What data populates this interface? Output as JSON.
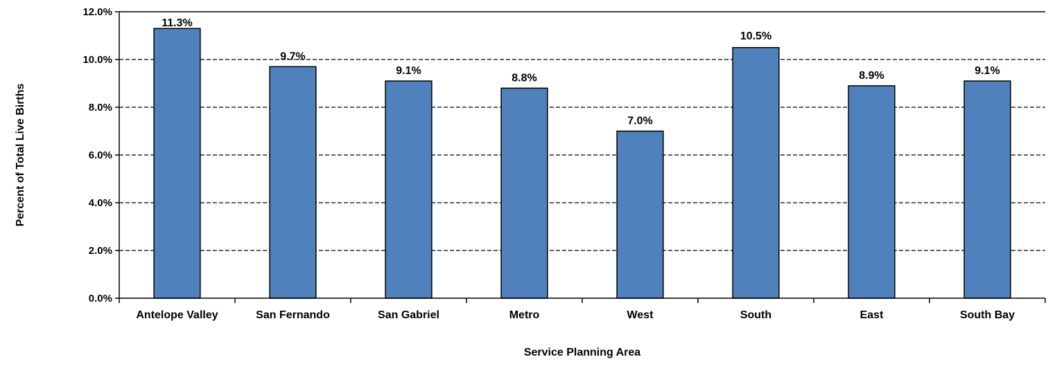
{
  "chart_data": {
    "type": "bar",
    "title": "",
    "xlabel": "Service Planning Area",
    "ylabel": "Percent of Total Live Births",
    "categories": [
      "Antelope Valley",
      "San Fernando",
      "San Gabriel",
      "Metro",
      "West",
      "South",
      "East",
      "South Bay"
    ],
    "values": [
      11.3,
      9.7,
      9.1,
      8.8,
      7.0,
      10.5,
      8.9,
      9.1
    ],
    "data_labels": [
      "11.3%",
      "9.7%",
      "9.1%",
      "8.8%",
      "7.0%",
      "10.5%",
      "8.9%",
      "9.1%"
    ],
    "ylim": [
      0,
      12
    ],
    "yticks": [
      0,
      2,
      4,
      6,
      8,
      10,
      12
    ],
    "ytick_labels": [
      "0.0%",
      "2.0%",
      "4.0%",
      "6.0%",
      "8.0%",
      "10.0%",
      "12.0%"
    ],
    "grid": "horizontal-dashed",
    "legend": "none",
    "colors": {
      "bar_fill": "#4F81BD",
      "bar_stroke": "#000000",
      "grid": "#000000",
      "axis": "#000000"
    }
  }
}
